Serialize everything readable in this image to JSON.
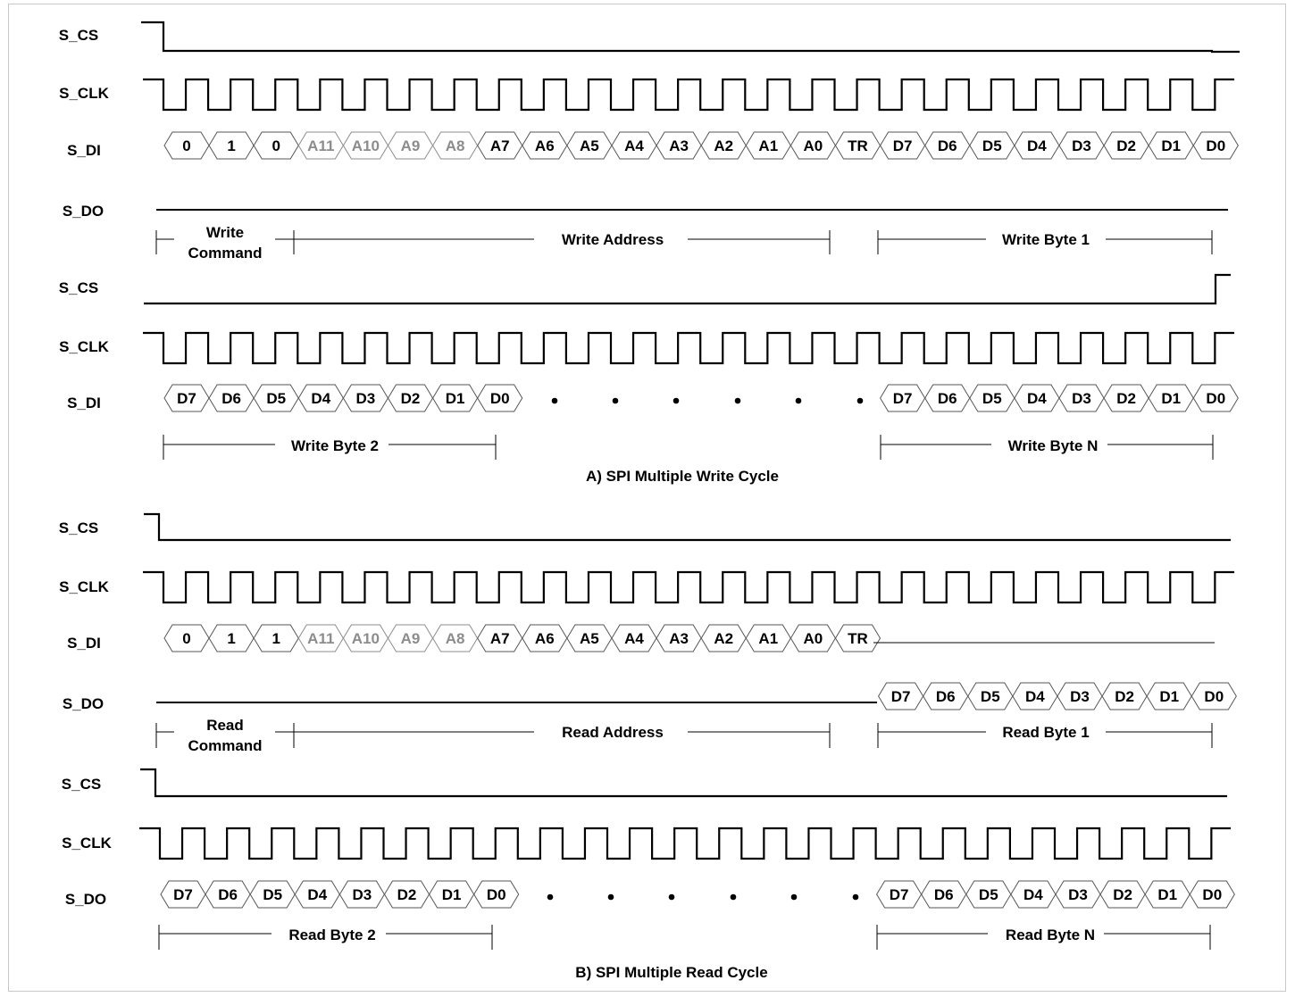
{
  "colors": {
    "line": "#000000",
    "address_high_bits": "#8c8c8c",
    "border": "#c8c8c8"
  },
  "section_a": {
    "caption": "A) SPI Multiple Write Cycle",
    "part1": {
      "signals": {
        "cs": "S_CS",
        "clk": "S_CLK",
        "di": "S_DI",
        "do": "S_DO"
      },
      "di_bits": [
        "0",
        "1",
        "0",
        "A11",
        "A10",
        "A9",
        "A8",
        "A7",
        "A6",
        "A5",
        "A4",
        "A3",
        "A2",
        "A1",
        "A0",
        "TR",
        "D7",
        "D6",
        "D5",
        "D4",
        "D3",
        "D2",
        "D1",
        "D0"
      ],
      "spans": [
        {
          "label_line1": "Write",
          "label_line2": "Command"
        },
        {
          "label": "Write Address"
        },
        {
          "label": "Write Byte 1"
        }
      ]
    },
    "part2": {
      "signals": {
        "cs": "S_CS",
        "clk": "S_CLK",
        "di": "S_DI"
      },
      "first_bits": [
        "D7",
        "D6",
        "D5",
        "D4",
        "D3",
        "D2",
        "D1",
        "D0"
      ],
      "last_bits": [
        "D7",
        "D6",
        "D5",
        "D4",
        "D3",
        "D2",
        "D1",
        "D0"
      ],
      "spans": [
        {
          "label": "Write Byte 2"
        },
        {
          "label": "Write Byte N"
        }
      ]
    }
  },
  "section_b": {
    "caption": "B) SPI Multiple Read Cycle",
    "part1": {
      "signals": {
        "cs": "S_CS",
        "clk": "S_CLK",
        "di": "S_DI",
        "do": "S_DO"
      },
      "di_bits": [
        "0",
        "1",
        "1",
        "A11",
        "A10",
        "A9",
        "A8",
        "A7",
        "A6",
        "A5",
        "A4",
        "A3",
        "A2",
        "A1",
        "A0",
        "TR"
      ],
      "do_bits": [
        "D7",
        "D6",
        "D5",
        "D4",
        "D3",
        "D2",
        "D1",
        "D0"
      ],
      "spans": [
        {
          "label_line1": "Read",
          "label_line2": "Command"
        },
        {
          "label": "Read Address"
        },
        {
          "label": "Read Byte 1"
        }
      ]
    },
    "part2": {
      "signals": {
        "cs": "S_CS",
        "clk": "S_CLK",
        "do": "S_DO"
      },
      "first_bits": [
        "D7",
        "D6",
        "D5",
        "D4",
        "D3",
        "D2",
        "D1",
        "D0"
      ],
      "last_bits": [
        "D7",
        "D6",
        "D5",
        "D4",
        "D3",
        "D2",
        "D1",
        "D0"
      ],
      "spans": [
        {
          "label": "Read Byte 2"
        },
        {
          "label": "Read Byte N"
        }
      ]
    }
  }
}
